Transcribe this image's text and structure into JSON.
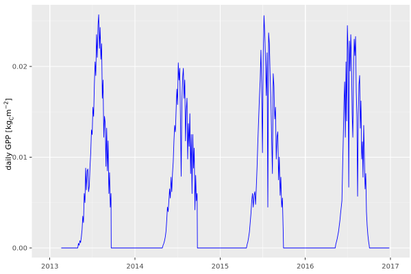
{
  "figure": {
    "kind": "ggplot2-style time series plot",
    "title": ""
  },
  "colors": {
    "page_bg": "#ffffff",
    "panel_bg": "#ebebeb",
    "grid_major": "#ffffff",
    "grid_minor": "#ffffff",
    "line": "#0000ff",
    "tick_text": "#4d4d4d",
    "tick_mark": "#333333",
    "axis_title": "#000000"
  },
  "axes": {
    "y_title_parts": [
      "daily GPP [kg",
      "C",
      "m",
      "−2",
      "]"
    ],
    "x_tick_labels": [
      "2013",
      "2014",
      "2015",
      "2016",
      "2017"
    ],
    "x_tick_values": [
      2013,
      2014,
      2015,
      2016,
      2017
    ],
    "y_tick_labels": [
      "0.00",
      "0.01",
      "0.02"
    ],
    "y_tick_values": [
      0,
      0.01,
      0.02
    ],
    "x_minor_values": [
      2013.5,
      2014.5,
      2015.5,
      2016.5
    ],
    "y_minor_values": [
      0.005,
      0.015,
      0.025
    ],
    "xlim": [
      2012.789,
      2017.225
    ],
    "ylim": [
      -0.001057,
      0.026792
    ]
  },
  "chart_data": {
    "type": "line",
    "title": "",
    "xlabel": "",
    "ylabel": "daily GPP [kg_C m^-2]",
    "x_unit": "decimal year",
    "y_unit": "kg C m^-2 (daily GPP)",
    "grid": true,
    "legend": false,
    "xlim": [
      2012.789,
      2017.225
    ],
    "ylim": [
      -0.001057,
      0.026792
    ],
    "series_name": "daily GPP",
    "line_color": "#0000ff",
    "segments": [
      {
        "t0": 2013.137,
        "dt": 0.0636,
        "v": [
          0,
          0,
          0,
          0
        ]
      },
      {
        "t0": 2013.336,
        "dt": 0.0085,
        "v": [
          0.0005,
          0.0003,
          0.0008,
          0.0006,
          0.0012,
          0.002,
          0.0035,
          0.0028,
          0.006,
          0.005,
          0.0088,
          0.0064,
          0.0085,
          0.0087,
          0.0062,
          0.0068,
          0.009,
          0.0105,
          0.013,
          0.0125,
          0.0155,
          0.0145,
          0.018,
          0.0205,
          0.019,
          0.0235,
          0.021,
          0.0245,
          0.0257,
          0.022,
          0.0243,
          0.0208,
          0.0225,
          0.0165,
          0.0185,
          0.0122,
          0.0145,
          0.0138,
          0.009,
          0.0132,
          0.0085,
          0.0118,
          0.006,
          0.0083,
          0.0045,
          0.006
        ]
      },
      {
        "t0": 2013.721,
        "dt": 0.2,
        "v": [
          0,
          0,
          0,
          0
        ]
      },
      {
        "t0": 2014.33,
        "dt": 0.0085,
        "v": [
          0.0003,
          0.0005,
          0.0008,
          0.0012,
          0.0018,
          0.003,
          0.0045,
          0.004,
          0.0052,
          0.0065,
          0.0055,
          0.0078,
          0.0062,
          0.0082,
          0.0095,
          0.0118,
          0.0135,
          0.0128,
          0.0152,
          0.0175,
          0.0158,
          0.0204,
          0.0185,
          0.0198,
          0.0142,
          0.0079,
          0.0162,
          0.0188,
          0.0198,
          0.0165,
          0.0185,
          0.0118,
          0.0152,
          0.0165,
          0.0098,
          0.0137,
          0.0112,
          0.0148,
          0.0082,
          0.0125,
          0.006,
          0.0125,
          0.0088,
          0.011,
          0.0042,
          0.008,
          0.0052,
          0.006
        ]
      },
      {
        "t0": 2014.733,
        "dt": 0.192,
        "v": [
          0,
          0,
          0,
          0
        ]
      },
      {
        "t0": 2015.317,
        "dt": 0.009,
        "v": [
          0.0004,
          0.0007,
          0.0012,
          0.0018,
          0.0028,
          0.0038,
          0.0052,
          0.006,
          0.0045,
          0.0058,
          0.0062,
          0.0048,
          0.0068,
          0.009,
          0.0118,
          0.0142,
          0.0165,
          0.0185,
          0.0218,
          0.0175,
          0.0105,
          0.0215,
          0.0256,
          0.0235,
          0.0205,
          0.0168,
          0.0215,
          0.0045,
          0.0237,
          0.0225,
          0.019,
          0.0165,
          0.012,
          0.0082,
          0.0192,
          0.0178,
          0.0142,
          0.0155,
          0.0098,
          0.0122,
          0.0128,
          0.0075,
          0.01,
          0.0058,
          0.0078,
          0.0045,
          0.0055,
          0.002
        ]
      },
      {
        "t0": 2015.744,
        "dt": 0.2025,
        "v": [
          0,
          0,
          0,
          0
        ]
      },
      {
        "t0": 2016.358,
        "dt": 0.008,
        "v": [
          0.0004,
          0.0007,
          0.001,
          0.0014,
          0.0018,
          0.0024,
          0.003,
          0.0038,
          0.0045,
          0.0052,
          0.0088,
          0.0122,
          0.016,
          0.0183,
          0.0122,
          0.0205,
          0.014,
          0.0245,
          0.0218,
          0.0067,
          0.0228,
          0.0195,
          0.0235,
          0.0208,
          0.0148,
          0.0122,
          0.0188,
          0.023,
          0.0212,
          0.0233,
          0.0172,
          0.0145,
          0.0057,
          0.0148,
          0.018,
          0.019,
          0.0132,
          0.0162,
          0.0098,
          0.0117,
          0.0078,
          0.0135,
          0.01,
          0.0065,
          0.0082,
          0.004,
          0.0025,
          0.0015,
          0.0008,
          0.0003
        ]
      },
      {
        "t0": 2016.753,
        "dt": 0.077,
        "v": [
          0,
          0,
          0,
          0
        ]
      }
    ]
  }
}
